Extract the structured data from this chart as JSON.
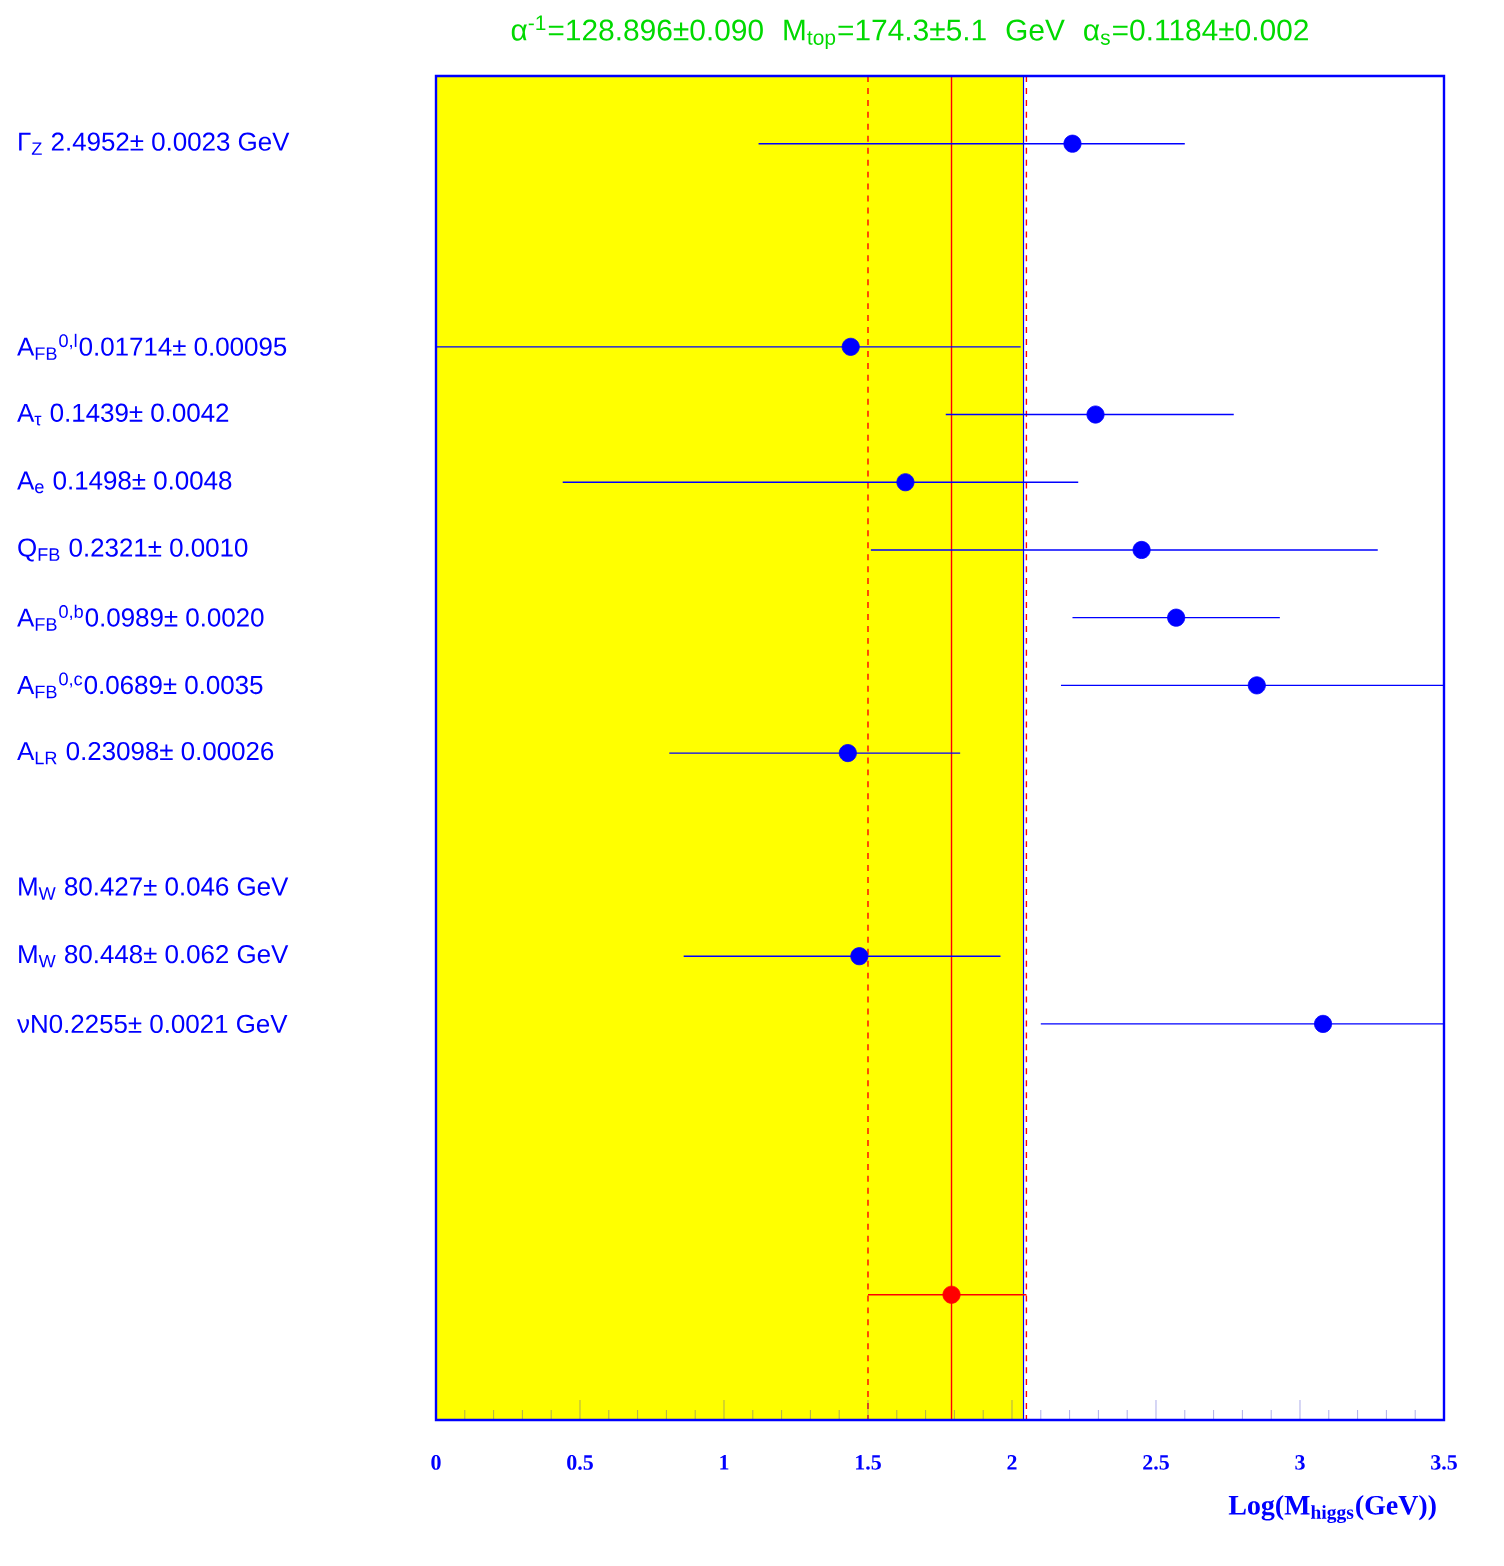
{
  "chart_data": {
    "type": "scatter",
    "orientation": "horizontal",
    "title": "α$^{-1}$=128.896±0.090    M$_{top}$=174.3±5.1 GeV    α$_{s}$=0.1184±0.002",
    "xlabel": "Log(M$_{higgs}$(GeV))",
    "categories": [
      "Γ$_{Z}$ 2.4952± 0.0023 GeV",
      null,
      null,
      "A$_{FB}$$^{0,l}$0.01714± 0.00095",
      "A$_{τ}$ 0.1439± 0.0042",
      "A$_{e}$ 0.1498± 0.0048",
      "Q$_{FB}$ 0.2321± 0.0010",
      "A$_{FB}$$^{0,b}$0.0989± 0.0020",
      "A$_{FB}$$^{0,c}$0.0689± 0.0035",
      "A$_{LR}$ 0.23098± 0.00026",
      null,
      "M$_{W}$ 80.427± 0.046 GeV",
      "M$_{W}$ 80.448± 0.062 GeV",
      "νN0.2255± 0.0021 GeV",
      null,
      null,
      null,
      null
    ],
    "values": [
      2.21,
      null,
      null,
      1.44,
      2.29,
      1.63,
      2.45,
      2.57,
      2.85,
      1.43,
      null,
      null,
      1.47,
      3.08,
      null,
      null,
      null,
      1.79
    ],
    "errors": [
      [
        1.12,
        2.6
      ],
      null,
      null,
      [
        0,
        2.03
      ],
      [
        1.77,
        2.77
      ],
      [
        0.44,
        2.23
      ],
      [
        1.51,
        3.27
      ],
      [
        2.21,
        2.93
      ],
      [
        2.17,
        3.5
      ],
      [
        0.81,
        1.82
      ],
      null,
      null,
      [
        0.86,
        1.96
      ],
      [
        2.1,
        3.5
      ],
      null,
      null,
      null,
      [
        1.5,
        2.05
      ]
    ],
    "colors": [
      "#0000ff",
      "#0000ff",
      "#0000ff",
      "#0000ff",
      "#0000ff",
      "#0000ff",
      "#0000ff",
      "#0000ff",
      "#0000ff",
      "#0000ff",
      "#0000ff",
      "#0000ff",
      "#0000ff",
      "#0000ff",
      "#0000ff",
      "#0000ff",
      "#0000ff",
      "#ff0000"
    ],
    "xlim": [
      0,
      3.5
    ],
    "xticks": [
      0,
      0.5,
      1,
      1.5,
      2,
      2.5,
      3,
      3.5
    ],
    "bands": [
      {
        "axis": "x",
        "from": 0,
        "to": 2.04,
        "color": "#ffff00"
      }
    ],
    "ref_lines": [
      {
        "axis": "x",
        "value": 1.5,
        "color": "#ff0000",
        "line_style": "dashed"
      },
      {
        "axis": "x",
        "value": 1.79,
        "color": "#ff0000",
        "line_style": "solid"
      },
      {
        "axis": "x",
        "value": 2.05,
        "color": "#ff0000",
        "line_style": "dashed"
      }
    ]
  }
}
